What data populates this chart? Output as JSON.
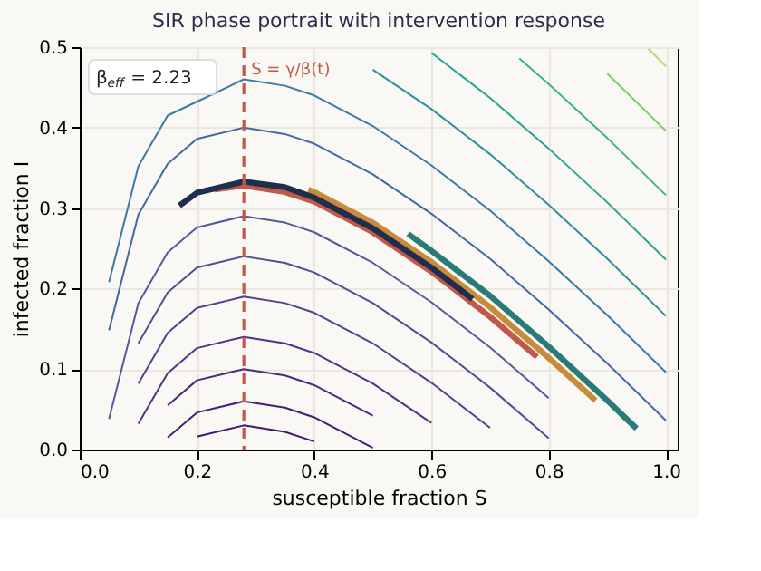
{
  "chart_data": {
    "type": "line",
    "title": "SIR phase portrait with intervention response",
    "xlabel": "susceptible fraction S",
    "ylabel": "infected fraction I",
    "xlim": [
      0,
      1.02
    ],
    "ylim": [
      0,
      0.5
    ],
    "xticks": [
      {
        "value": 0,
        "label": "0.0"
      },
      0.2,
      0.4,
      0.6,
      0.8,
      {
        "value": 1,
        "label": "1.0"
      }
    ],
    "yticks": [
      {
        "value": 0,
        "label": "0.0"
      },
      0.1,
      0.2,
      0.3,
      0.4,
      0.5
    ],
    "grid": true,
    "annotations": [
      "β$_{eff}$ = 2.23"
    ],
    "ref_lines": [
      {
        "axis": "x",
        "value": 0.28,
        "label": "S = γ/β(t)",
        "color": "#c0594a",
        "line_style": "dashed"
      }
    ],
    "series": [
      {
        "color": "#3f1a6e",
        "x": [
          0.2,
          0.28,
          0.35,
          0.4
        ],
        "values": [
          0.016,
          0.03,
          0.022,
          0.01
        ]
      },
      {
        "color": "#45206f",
        "x": [
          0.15,
          0.2,
          0.28,
          0.35,
          0.4,
          0.5
        ],
        "values": [
          0.015,
          0.046,
          0.06,
          0.052,
          0.04,
          0.002
        ]
      },
      {
        "color": "#4b2a78",
        "x": [
          0.15,
          0.2,
          0.28,
          0.35,
          0.4,
          0.5
        ],
        "values": [
          0.055,
          0.086,
          0.1,
          0.092,
          0.08,
          0.042
        ]
      },
      {
        "color": "#4f3582",
        "x": [
          0.1,
          0.15,
          0.2,
          0.28,
          0.35,
          0.4,
          0.5,
          0.6
        ],
        "values": [
          0.032,
          0.095,
          0.126,
          0.14,
          0.132,
          0.12,
          0.082,
          0.033
        ]
      },
      {
        "color": "#52418b",
        "x": [
          0.1,
          0.15,
          0.2,
          0.28,
          0.35,
          0.4,
          0.5,
          0.6,
          0.7
        ],
        "values": [
          0.082,
          0.145,
          0.176,
          0.19,
          0.182,
          0.17,
          0.132,
          0.083,
          0.027
        ]
      },
      {
        "color": "#544c92",
        "x": [
          0.1,
          0.15,
          0.2,
          0.28,
          0.35,
          0.4,
          0.5,
          0.6,
          0.7,
          0.8
        ],
        "values": [
          0.132,
          0.195,
          0.226,
          0.24,
          0.232,
          0.22,
          0.182,
          0.133,
          0.077,
          0.014
        ]
      },
      {
        "color": "#535a99",
        "x": [
          0.05,
          0.1,
          0.15,
          0.2,
          0.28,
          0.35,
          0.4,
          0.5,
          0.6,
          0.7,
          0.8
        ],
        "values": [
          0.038,
          0.182,
          0.245,
          0.276,
          0.29,
          0.282,
          0.27,
          0.232,
          0.183,
          0.127,
          0.064
        ]
      },
      {
        "color": "#46679f",
        "x": [
          0.05,
          0.1,
          0.15,
          0.2,
          0.28,
          0.35,
          0.4,
          0.5,
          0.6,
          0.7,
          0.8,
          0.9,
          1.0
        ],
        "values": [
          0.148,
          0.292,
          0.355,
          0.386,
          0.4,
          0.392,
          0.38,
          0.342,
          0.293,
          0.237,
          0.174,
          0.107,
          0.036
        ]
      },
      {
        "color": "#3b7ba0",
        "x": [
          0.05,
          0.1,
          0.15,
          0.28,
          0.35,
          0.4,
          0.5,
          0.6,
          0.7,
          0.8,
          0.9,
          1.0
        ],
        "values": [
          0.208,
          0.352,
          0.415,
          0.46,
          0.452,
          0.44,
          0.402,
          0.353,
          0.297,
          0.234,
          0.167,
          0.096
        ]
      },
      {
        "color": "#2d8f9c",
        "x": [
          0.5,
          0.6,
          0.7,
          0.8,
          0.9,
          1.0
        ],
        "values": [
          0.472,
          0.423,
          0.367,
          0.304,
          0.237,
          0.166
        ]
      },
      {
        "color": "#27a392",
        "x": [
          0.6,
          0.7,
          0.8,
          0.9,
          1.0
        ],
        "values": [
          0.493,
          0.437,
          0.374,
          0.307,
          0.236
        ]
      },
      {
        "color": "#3bb681",
        "x": [
          0.75,
          0.8,
          0.9,
          1.0
        ],
        "values": [
          0.486,
          0.454,
          0.387,
          0.316
        ]
      },
      {
        "color": "#7acb6a",
        "x": [
          0.9,
          1.0
        ],
        "values": [
          0.467,
          0.396
        ]
      },
      {
        "color": "#b3dc6a",
        "x": [
          0.97,
          1.0
        ],
        "values": [
          0.498,
          0.476
        ]
      },
      {
        "color": "#c98a3a",
        "x": [
          0.39,
          0.4,
          0.5,
          0.6,
          0.7,
          0.8,
          0.88
        ],
        "values": [
          0.323,
          0.32,
          0.282,
          0.233,
          0.177,
          0.114,
          0.061
        ]
      },
      {
        "color": "#2a7a7a",
        "x": [
          0.56,
          0.6,
          0.7,
          0.8,
          0.9,
          0.95
        ],
        "values": [
          0.268,
          0.247,
          0.191,
          0.128,
          0.061,
          0.026
        ]
      },
      {
        "color": "#c0594a",
        "x": [
          0.23,
          0.28,
          0.35,
          0.4,
          0.5,
          0.6,
          0.7,
          0.78
        ],
        "values": [
          0.323,
          0.328,
          0.32,
          0.308,
          0.27,
          0.221,
          0.165,
          0.115
        ]
      },
      {
        "color": "#1f2d4f",
        "x": [
          0.17,
          0.2,
          0.28,
          0.35,
          0.4,
          0.5,
          0.6,
          0.67
        ],
        "values": [
          0.303,
          0.319,
          0.333,
          0.326,
          0.313,
          0.275,
          0.226,
          0.187
        ]
      }
    ]
  }
}
